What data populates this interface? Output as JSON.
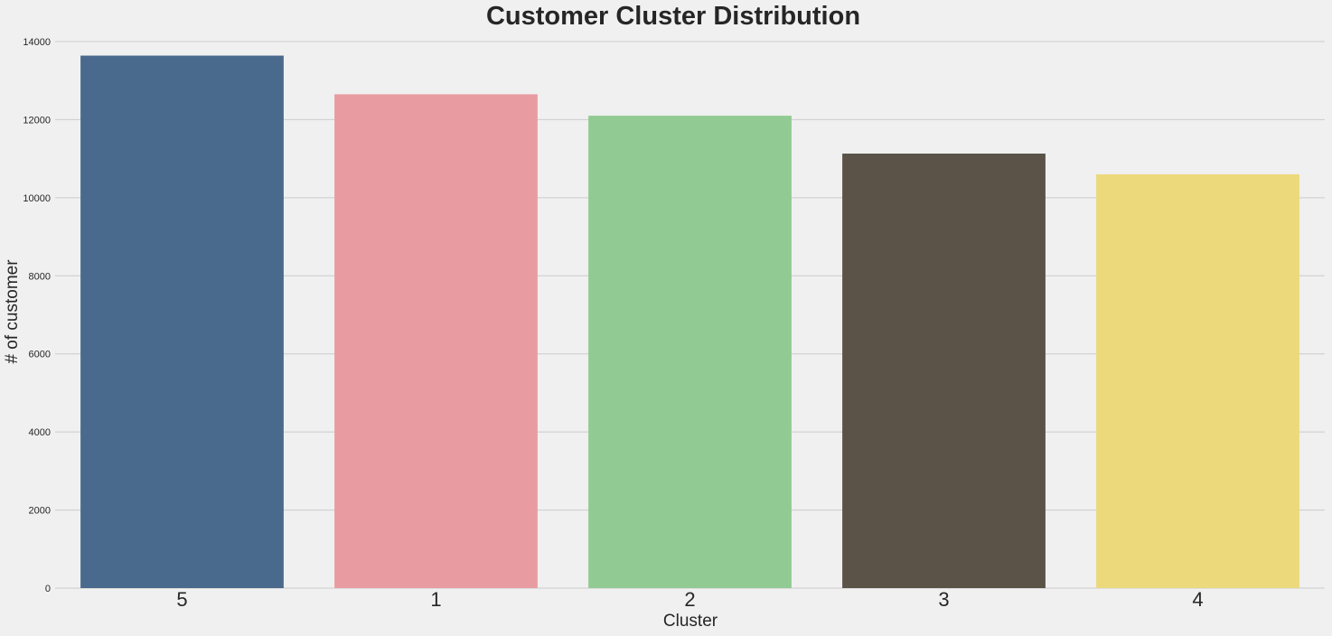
{
  "chart_data": {
    "type": "bar",
    "title": "Customer Cluster Distribution",
    "xlabel": "Cluster",
    "ylabel": "# of customer",
    "categories": [
      "5",
      "1",
      "2",
      "3",
      "4"
    ],
    "values": [
      13640,
      12650,
      12100,
      11130,
      10600
    ],
    "colors": [
      "#4a6a8d",
      "#e89ca1",
      "#91cb93",
      "#5b5248",
      "#ecd97c"
    ],
    "ylim": [
      0,
      14000
    ],
    "yticks": [
      0,
      2000,
      4000,
      6000,
      8000,
      10000,
      12000,
      14000
    ],
    "grid": true,
    "grid_axis": "y",
    "background": "#f0f0f0"
  }
}
